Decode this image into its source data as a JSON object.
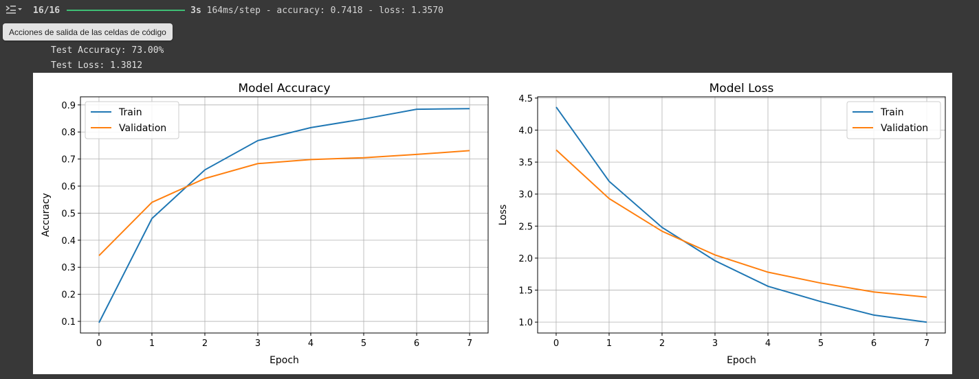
{
  "progress": {
    "step": "16/16",
    "fraction": 1.0,
    "time": "3s",
    "rest": " 164ms/step - accuracy: 0.7418 - loss: 1.3570"
  },
  "tooltip": {
    "text": "Acciones de salida de las celdas de código"
  },
  "stdout": {
    "line1": "Test Accuracy: 73.00%",
    "line2": "Test Loss: 1.3812"
  },
  "colors": {
    "train": "#1f77b4",
    "validation": "#ff7f0e",
    "progress": "#3fbf75"
  },
  "chart_data": [
    {
      "type": "line",
      "title": "Model Accuracy",
      "xlabel": "Epoch",
      "ylabel": "Accuracy",
      "x": [
        0,
        1,
        2,
        3,
        4,
        5,
        6,
        7
      ],
      "xticks": [
        "0",
        "1",
        "2",
        "3",
        "4",
        "5",
        "6",
        "7"
      ],
      "yticks": [
        "0.1",
        "0.2",
        "0.3",
        "0.4",
        "0.5",
        "0.6",
        "0.7",
        "0.8",
        "0.9"
      ],
      "ytick_values": [
        0.1,
        0.2,
        0.3,
        0.4,
        0.5,
        0.6,
        0.7,
        0.8,
        0.9
      ],
      "xlim": [
        -0.35,
        7.35
      ],
      "ylim": [
        0.057,
        0.93
      ],
      "grid": true,
      "legend": "upper left",
      "series": [
        {
          "name": "Train",
          "values": [
            0.095,
            0.48,
            0.66,
            0.768,
            0.816,
            0.848,
            0.884,
            0.886
          ]
        },
        {
          "name": "Validation",
          "values": [
            0.343,
            0.54,
            0.628,
            0.683,
            0.698,
            0.705,
            0.717,
            0.731
          ]
        }
      ]
    },
    {
      "type": "line",
      "title": "Model Loss",
      "xlabel": "Epoch",
      "ylabel": "Loss",
      "x": [
        0,
        1,
        2,
        3,
        4,
        5,
        6,
        7
      ],
      "xticks": [
        "0",
        "1",
        "2",
        "3",
        "4",
        "5",
        "6",
        "7"
      ],
      "yticks": [
        "1.0",
        "1.5",
        "2.0",
        "2.5",
        "3.0",
        "3.5",
        "4.0",
        "4.5"
      ],
      "ytick_values": [
        1.0,
        1.5,
        2.0,
        2.5,
        3.0,
        3.5,
        4.0,
        4.5
      ],
      "xlim": [
        -0.35,
        7.35
      ],
      "ylim": [
        0.83,
        4.52
      ],
      "grid": true,
      "legend": "upper right",
      "series": [
        {
          "name": "Train",
          "values": [
            4.36,
            3.2,
            2.48,
            1.96,
            1.56,
            1.32,
            1.11,
            1.0
          ]
        },
        {
          "name": "Validation",
          "values": [
            3.69,
            2.93,
            2.42,
            2.05,
            1.78,
            1.61,
            1.47,
            1.39
          ]
        }
      ]
    }
  ]
}
